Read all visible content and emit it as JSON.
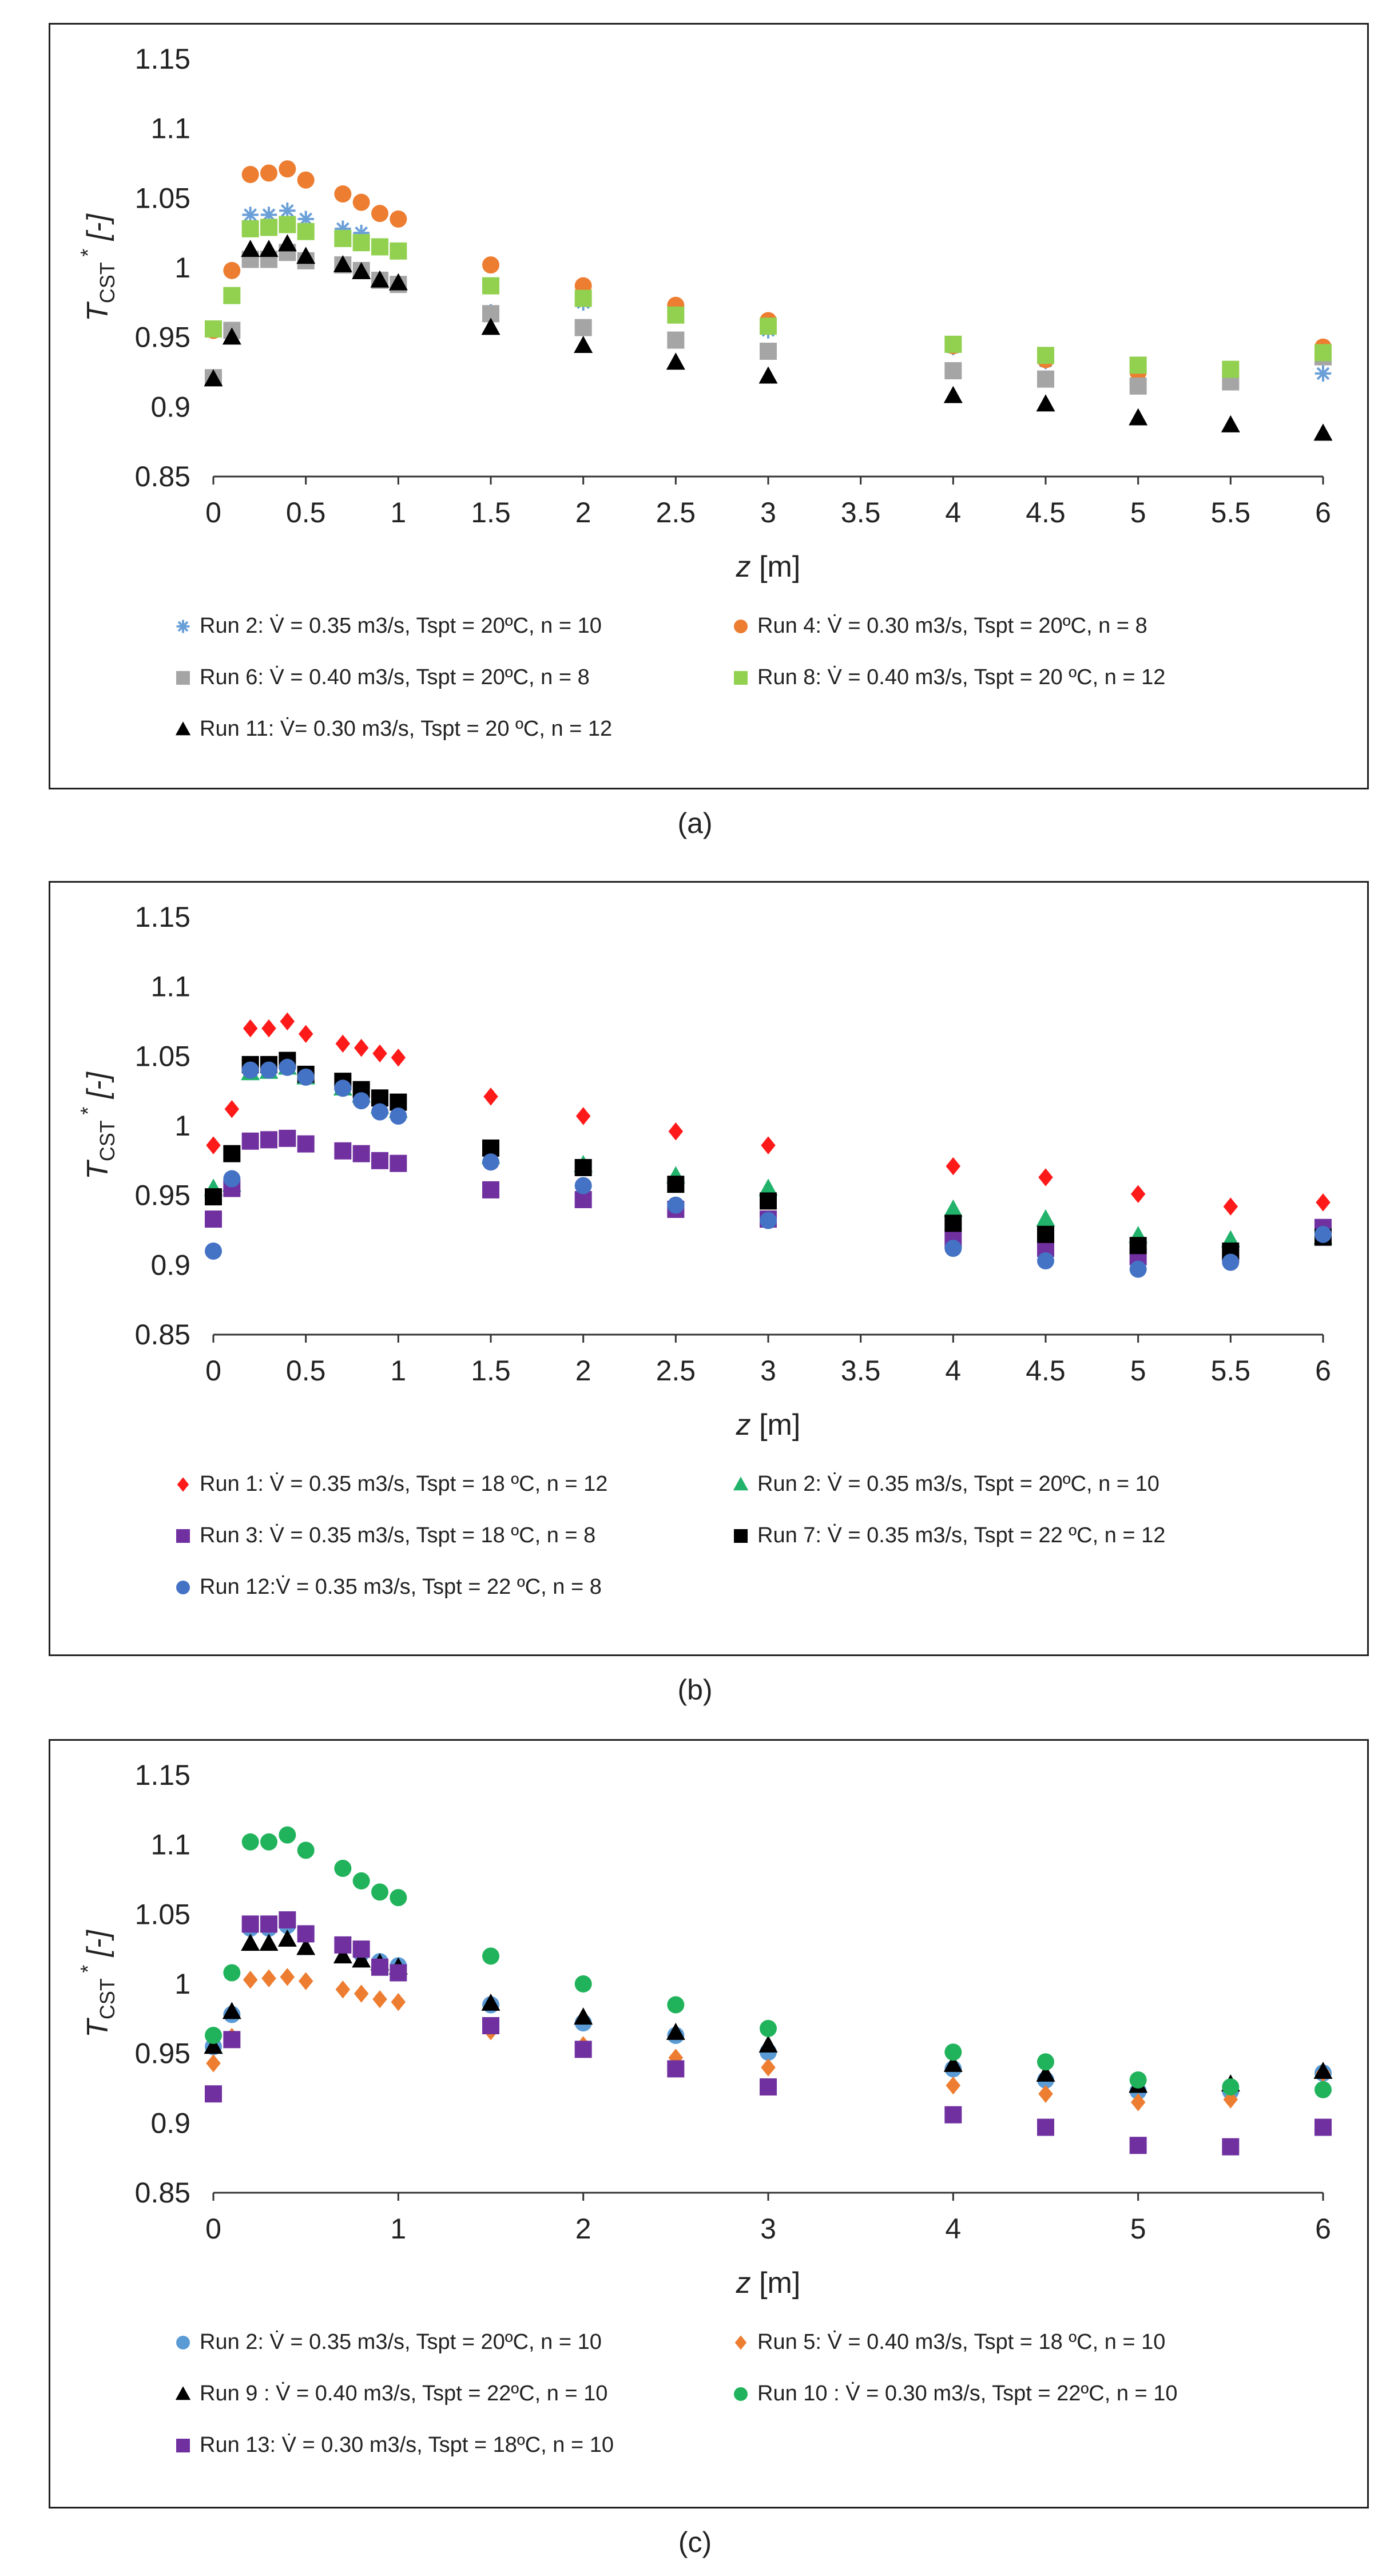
{
  "captions": [
    "(a)",
    "(b)",
    "(c)"
  ],
  "chart_data": [
    {
      "type": "scatter",
      "id": "a",
      "xlabel": "z",
      "xunit": "[m]",
      "ylabel_main": "T",
      "ylabel_sub": "CST",
      "ylabel_sup": "*",
      "ylabel_unit": "[-]",
      "xlim": [
        0,
        6
      ],
      "ylim": [
        0.85,
        1.15
      ],
      "xticks": [
        "0",
        "0.5",
        "1",
        "1.5",
        "2",
        "2.5",
        "3",
        "3.5",
        "4",
        "4.5",
        "5",
        "5.5",
        "6"
      ],
      "xtick_values": [
        0,
        0.5,
        1,
        1.5,
        2,
        2.5,
        3,
        3.5,
        4,
        4.5,
        5,
        5.5,
        6
      ],
      "yticks": [
        "0.85",
        "0.9",
        "0.95",
        "1",
        "1.05",
        "1.1",
        "1.15"
      ],
      "ytick_values": [
        0.85,
        0.9,
        0.95,
        1.0,
        1.05,
        1.1,
        1.15
      ],
      "x": [
        0,
        0.1,
        0.2,
        0.3,
        0.4,
        0.5,
        0.7,
        0.8,
        0.9,
        1,
        1.5,
        2,
        2.5,
        3,
        4,
        4.5,
        5,
        5.5,
        6
      ],
      "series": [
        {
          "name": "Run 2: V̇ = 0.35 m3/s, Tspt = 20ºC, n = 10",
          "marker": "star",
          "color": "#6a9fd8",
          "values": [
            0.955,
            0.955,
            1.038,
            1.038,
            1.041,
            1.035,
            1.028,
            1.025,
            1.015,
            1.012,
            0.968,
            0.975,
            0.966,
            0.955,
            0.943,
            0.933,
            0.925,
            0.925,
            0.924
          ]
        },
        {
          "name": "Run 4: V̇ = 0.30 m3/s, Tspt = 20ºC, n = 8",
          "marker": "circle",
          "color": "#ed7d31",
          "values": [
            0.955,
            0.998,
            1.067,
            1.068,
            1.071,
            1.063,
            1.053,
            1.047,
            1.039,
            1.035,
            1.002,
            0.987,
            0.973,
            0.962,
            0.944,
            0.934,
            0.925,
            0.926,
            0.943
          ]
        },
        {
          "name": "Run 6: V̇ = 0.40 m3/s, Tspt = 20ºC, n = 8",
          "marker": "square",
          "color": "#a5a5a5",
          "values": [
            0.921,
            0.955,
            1.006,
            1.006,
            1.011,
            1.005,
            1.002,
            0.998,
            0.991,
            0.988,
            0.967,
            0.957,
            0.948,
            0.94,
            0.926,
            0.92,
            0.915,
            0.918,
            0.936
          ]
        },
        {
          "name": "Run 8: V̇ = 0.40 m3/s, Tspt = 20 ºC, n = 12",
          "marker": "square",
          "color": "#92d050",
          "values": [
            0.956,
            0.98,
            1.028,
            1.029,
            1.031,
            1.026,
            1.021,
            1.018,
            1.015,
            1.012,
            0.987,
            0.978,
            0.966,
            0.958,
            0.945,
            0.937,
            0.93,
            0.927,
            0.939
          ]
        },
        {
          "name": "Run 11: V̇= 0.30 m3/s, Tspt = 20 ºC, n = 12",
          "marker": "triangle",
          "color": "#000000",
          "values": [
            0.92,
            0.95,
            1.013,
            1.013,
            1.017,
            1.008,
            1.002,
            0.997,
            0.991,
            0.989,
            0.957,
            0.944,
            0.932,
            0.922,
            0.908,
            0.902,
            0.892,
            0.887,
            0.881
          ]
        }
      ]
    },
    {
      "type": "scatter",
      "id": "b",
      "xlabel": "z",
      "xunit": "[m]",
      "ylabel_main": "T",
      "ylabel_sub": "CST",
      "ylabel_sup": "*",
      "ylabel_unit": "[-]",
      "xlim": [
        0,
        6
      ],
      "ylim": [
        0.85,
        1.15
      ],
      "xticks": [
        "0",
        "0.5",
        "1",
        "1.5",
        "2",
        "2.5",
        "3",
        "3.5",
        "4",
        "4.5",
        "5",
        "5.5",
        "6"
      ],
      "xtick_values": [
        0,
        0.5,
        1,
        1.5,
        2,
        2.5,
        3,
        3.5,
        4,
        4.5,
        5,
        5.5,
        6
      ],
      "yticks": [
        "0.85",
        "0.9",
        "0.95",
        "1",
        "1.05",
        "1.1",
        "1.15"
      ],
      "ytick_values": [
        0.85,
        0.9,
        0.95,
        1.0,
        1.05,
        1.1,
        1.15
      ],
      "x": [
        0,
        0.1,
        0.2,
        0.3,
        0.4,
        0.5,
        0.7,
        0.8,
        0.9,
        1,
        1.5,
        2,
        2.5,
        3,
        4,
        4.5,
        5,
        5.5,
        6
      ],
      "series": [
        {
          "name": "Run 1: V̇ = 0.35 m3/s, Tspt = 18 ºC, n = 12",
          "marker": "diamond",
          "color": "#ff1a1a",
          "values": [
            0.986,
            1.012,
            1.07,
            1.07,
            1.075,
            1.066,
            1.059,
            1.056,
            1.052,
            1.049,
            1.021,
            1.007,
            0.996,
            0.986,
            0.971,
            0.963,
            0.951,
            0.942,
            0.945
          ]
        },
        {
          "name": "Run 2: V̇ = 0.35 m3/s, Tspt = 20ºC, n = 10",
          "marker": "triangle",
          "color": "#21b36b",
          "values": [
            0.955,
            0.958,
            1.038,
            1.039,
            1.042,
            1.035,
            1.027,
            1.022,
            1.014,
            1.011,
            0.978,
            0.972,
            0.964,
            0.955,
            0.94,
            0.933,
            0.921,
            0.918,
            0.92
          ]
        },
        {
          "name": "Run 3: V̇ = 0.35 m3/s, Tspt = 18 ºC, n = 8",
          "marker": "square",
          "color": "#7030a0",
          "values": [
            0.933,
            0.955,
            0.989,
            0.99,
            0.991,
            0.987,
            0.982,
            0.98,
            0.975,
            0.973,
            0.954,
            0.947,
            0.94,
            0.933,
            0.918,
            0.912,
            0.906,
            0.908,
            0.927
          ]
        },
        {
          "name": "Run 7: V̇ = 0.35 m3/s, Tspt = 22 ºC, n = 12",
          "marker": "square",
          "color": "#000000",
          "values": [
            0.949,
            0.98,
            1.044,
            1.044,
            1.047,
            1.037,
            1.032,
            1.026,
            1.02,
            1.017,
            0.984,
            0.97,
            0.958,
            0.946,
            0.93,
            0.922,
            0.914,
            0.91,
            0.92
          ]
        },
        {
          "name": "Run 12:V̇ = 0.35 m3/s, Tspt = 22 ºC, n = 8",
          "marker": "circle",
          "color": "#4472c4",
          "values": [
            0.91,
            0.962,
            1.04,
            1.04,
            1.042,
            1.035,
            1.027,
            1.018,
            1.01,
            1.007,
            0.974,
            0.957,
            0.943,
            0.932,
            0.912,
            0.903,
            0.897,
            0.902,
            0.922
          ]
        }
      ]
    },
    {
      "type": "scatter",
      "id": "c",
      "xlabel": "z",
      "xunit": "[m]",
      "ylabel_main": "T",
      "ylabel_sub": "CST",
      "ylabel_sup": "*",
      "ylabel_unit": "[-]",
      "xlim": [
        0,
        6
      ],
      "ylim": [
        0.85,
        1.15
      ],
      "xticks": [
        "0",
        "1",
        "2",
        "3",
        "4",
        "5",
        "6"
      ],
      "xtick_values": [
        0,
        1,
        2,
        3,
        4,
        5,
        6
      ],
      "yticks": [
        "0.85",
        "0.9",
        "0.95",
        "1",
        "1.05",
        "1.1",
        "1.15"
      ],
      "ytick_values": [
        0.85,
        0.9,
        0.95,
        1.0,
        1.05,
        1.1,
        1.15
      ],
      "x": [
        0,
        0.1,
        0.2,
        0.3,
        0.4,
        0.5,
        0.7,
        0.8,
        0.9,
        1,
        1.5,
        2,
        2.5,
        3,
        4,
        4.5,
        5,
        5.5,
        6
      ],
      "series": [
        {
          "name": "Run 2: V̇ = 0.35 m3/s, Tspt = 20ºC, n = 10",
          "marker": "circle",
          "color": "#5b9bd5",
          "values": [
            0.955,
            0.978,
            1.04,
            1.04,
            1.042,
            1.036,
            1.028,
            1.022,
            1.016,
            1.013,
            0.985,
            0.972,
            0.963,
            0.951,
            0.939,
            0.931,
            0.923,
            0.923,
            0.936
          ]
        },
        {
          "name": "Run 5: V̇ = 0.40 m3/s, Tspt = 18 ºC, n = 10",
          "marker": "diamond",
          "color": "#ed7d31",
          "values": [
            0.943,
            0.962,
            1.003,
            1.004,
            1.005,
            1.002,
            0.996,
            0.993,
            0.989,
            0.987,
            0.966,
            0.956,
            0.947,
            0.94,
            0.927,
            0.921,
            0.915,
            0.917,
            0.936
          ]
        },
        {
          "name": "Run 9 : V̇ = 0.40 m3/s, Tspt = 22ºC, n = 10",
          "marker": "triangle",
          "color": "#000000",
          "values": [
            0.955,
            0.98,
            1.029,
            1.029,
            1.032,
            1.026,
            1.02,
            1.017,
            1.015,
            1.012,
            0.986,
            0.976,
            0.965,
            0.956,
            0.942,
            0.935,
            0.927,
            0.928,
            0.937
          ]
        },
        {
          "name": "Run 10 : V̇ = 0.30 m3/s, Tspt = 22ºC, n = 10",
          "marker": "circle",
          "color": "#21b35b",
          "values": [
            0.963,
            1.008,
            1.102,
            1.102,
            1.107,
            1.096,
            1.083,
            1.074,
            1.066,
            1.062,
            1.02,
            1.0,
            0.985,
            0.968,
            0.951,
            0.944,
            0.931,
            0.926,
            0.924
          ]
        },
        {
          "name": "Run 13: V̇ = 0.30 m3/s, Tspt = 18ºC, n = 10",
          "marker": "square",
          "color": "#7030a0",
          "values": [
            0.921,
            0.96,
            1.043,
            1.043,
            1.046,
            1.036,
            1.028,
            1.025,
            1.012,
            1.008,
            0.97,
            0.953,
            0.939,
            0.926,
            0.906,
            0.897,
            0.884,
            0.883,
            0.897
          ]
        }
      ]
    }
  ]
}
